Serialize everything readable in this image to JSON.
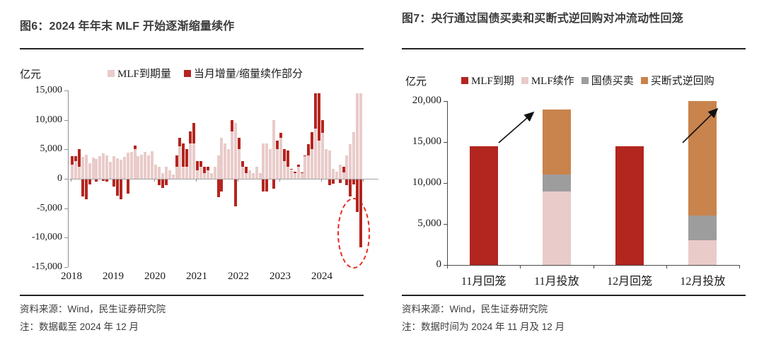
{
  "panels": [
    {
      "figure_label": "图6：2024 年年末 MLF 开始逐渐缩量续作",
      "source": "资料来源：Wind，民生证券研究院",
      "note": "注：数据截至 2024 年 12 月"
    },
    {
      "figure_label": "图7：央行通过国债买卖和买断式逆回购对冲流动性回笼",
      "source": "资料来源：Wind，民生证券研究院",
      "note": "注：数据时间为 2024 年 11 月及 12 月"
    }
  ],
  "chart_data": [
    {
      "type": "bar",
      "title": "图6：2024 年年末 MLF 开始逐渐缩量续作",
      "unit_label": "亿元",
      "ylabel": "亿元",
      "xlabel": "",
      "ylim": [
        -15000,
        15000
      ],
      "yticks": [
        15000,
        10000,
        5000,
        0,
        -5000,
        -10000,
        -15000
      ],
      "ytick_labels": [
        "15,000",
        "10,000",
        "5,000",
        "0",
        "-5,000",
        "-10,000",
        "-15,000"
      ],
      "x_year_labels": [
        "2018",
        "2019",
        "2020",
        "2021",
        "2022",
        "2023",
        "2024"
      ],
      "months_per_year": 12,
      "legend": [
        "MLF到期量",
        "当月增量/缩量续作部分"
      ],
      "colors": {
        "maturity": "#e9cbca",
        "net": "#b3251f"
      },
      "series": [
        {
          "name": "MLF到期量",
          "values": [
            2400,
            3000,
            2000,
            3700,
            4100,
            2600,
            3600,
            3400,
            3800,
            4300,
            4000,
            2900,
            3900,
            3500,
            3300,
            3700,
            4400,
            4600,
            5000,
            3800,
            4100,
            4600,
            4000,
            4700,
            2400,
            2000,
            1000,
            2000,
            1400,
            700,
            2000,
            5500,
            2000,
            2000,
            6000,
            6000,
            1500,
            2000,
            1000,
            1500,
            1000,
            2000,
            4000,
            7000,
            6000,
            5000,
            8000,
            9500,
            5000,
            2000,
            1000,
            1500,
            1000,
            2000,
            1000,
            6000,
            6000,
            5000,
            10000,
            5000,
            7000,
            3000,
            2000,
            1500,
            1000,
            2000,
            1000,
            4000,
            4000,
            5000,
            8500,
            6500,
            7790,
            4990,
            4810,
            1700,
            1250,
            2370,
            1030,
            4010,
            5910,
            7890,
            14500,
            14500
          ]
        },
        {
          "name": "当月增量/缩量续作部分",
          "values": [
            1400,
            900,
            3100,
            -2900,
            -3300,
            -800,
            0,
            -300,
            0,
            -200,
            -400,
            0,
            -1200,
            -2700,
            -3300,
            0,
            -2400,
            0,
            600,
            0,
            0,
            0,
            0,
            0,
            0,
            -1000,
            -1400,
            -1000,
            0,
            0,
            2000,
            1500,
            4000,
            3000,
            2000,
            3500,
            1500,
            1000,
            1000,
            600,
            0,
            0,
            -3000,
            -2000,
            0,
            0,
            2000,
            -4500,
            2000,
            1000,
            1000,
            0,
            0,
            0,
            0,
            -2000,
            -2000,
            0,
            -1500,
            1500,
            790,
            1990,
            2810,
            200,
            250,
            370,
            30,
            10,
            1910,
            2890,
            6000,
            8000,
            2160,
            0,
            -940,
            -700,
            0,
            -550,
            970,
            -1010,
            -2910,
            -890,
            -5500,
            -11500
          ]
        }
      ],
      "annotation": {
        "shape": "dashed-ellipse",
        "color": "#e8281e",
        "highlights": "2024年11月及12月MLF缩量续作（-5,500 与 -11,500）"
      }
    },
    {
      "type": "bar",
      "subtype": "stacked",
      "title": "图7：央行通过国债买卖和买断式逆回购对冲流动性回笼",
      "unit_label": "亿元",
      "ylabel": "亿元",
      "xlabel": "",
      "ylim": [
        0,
        20000
      ],
      "yticks": [
        20000,
        15000,
        10000,
        5000,
        0
      ],
      "ytick_labels": [
        "20,000",
        "15,000",
        "10,000",
        "5,000",
        "0"
      ],
      "categories": [
        "11月回笼",
        "11月投放",
        "12月回笼",
        "12月投放"
      ],
      "legend": [
        "MLF到期",
        "MLF续作",
        "国债买卖",
        "买断式逆回购"
      ],
      "series": [
        {
          "name": "MLF到期",
          "color": "#b3251f",
          "values": [
            14500,
            0,
            14500,
            0
          ]
        },
        {
          "name": "MLF续作",
          "color": "#e9cbca",
          "values": [
            0,
            9000,
            0,
            3000
          ]
        },
        {
          "name": "国债买卖",
          "color": "#9d9d9d",
          "values": [
            0,
            2000,
            0,
            3000
          ]
        },
        {
          "name": "买断式逆回购",
          "color": "#c9834c",
          "values": [
            0,
            8000,
            0,
            14000
          ]
        }
      ],
      "totals": {
        "11月投放": 19000,
        "12月投放": 20000
      },
      "arrows": [
        {
          "from_category": "11月回笼",
          "to_category": "11月投放"
        },
        {
          "from_category": "12月回笼",
          "to_category": "12月投放"
        }
      ]
    }
  ]
}
